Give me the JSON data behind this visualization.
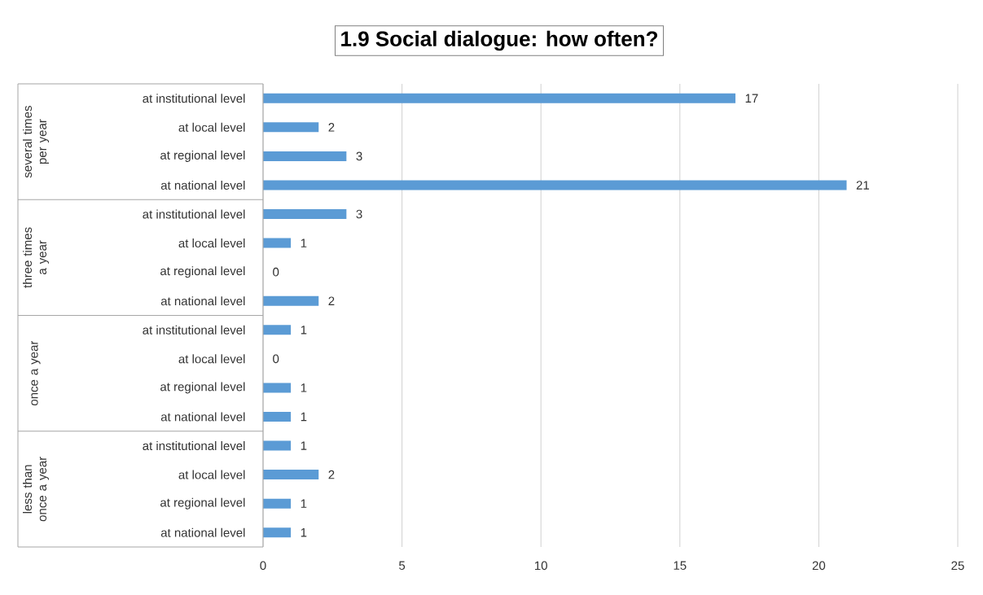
{
  "chart_data": {
    "type": "bar",
    "orientation": "horizontal",
    "title": "1.9 Social dialogue: how often?",
    "categories": [
      "at institutional level",
      "at local level",
      "at regional level",
      "at national level",
      "at institutional level",
      "at local level",
      "at regional level",
      "at national level",
      "at institutional level",
      "at local level",
      "at regional level",
      "at national level",
      "at institutional level",
      "at local level",
      "at regional level",
      "at national level"
    ],
    "values": [
      17,
      2,
      3,
      21,
      3,
      1,
      0,
      2,
      1,
      0,
      1,
      1,
      1,
      2,
      1,
      1
    ],
    "color": "#5b9bd5",
    "xlim": [
      0,
      25
    ],
    "xticks": [
      0,
      5,
      10,
      15,
      20,
      25
    ],
    "grid": "x",
    "data_labels": true,
    "annotations": [
      "several times per year",
      "three times a year",
      "once a year",
      "less than once a year"
    ]
  }
}
